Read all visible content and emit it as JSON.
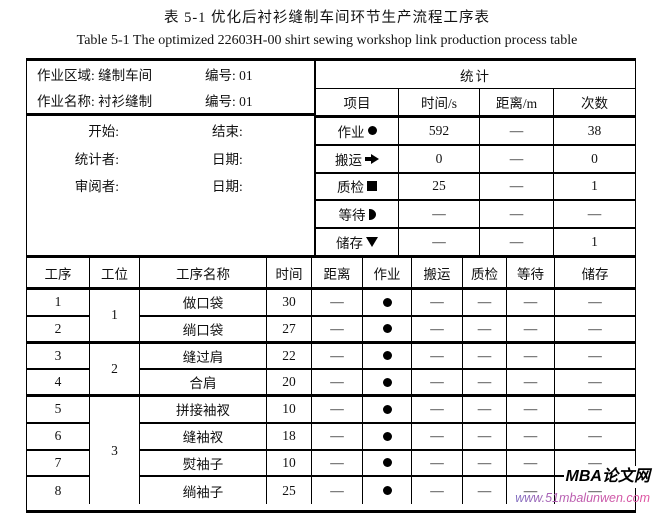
{
  "titles": {
    "cn": "表 5-1 优化后衬衫缝制车间环节生产流程工序表",
    "en": "Table 5-1 The optimized 22603H-00 shirt sewing workshop link production process table"
  },
  "info": {
    "area_label": "作业区域:",
    "area_value": "缝制车间",
    "area_no_label": "编号:",
    "area_no": "01",
    "name_label": "作业名称:",
    "name_value": "衬衫缝制",
    "name_no_label": "编号:",
    "name_no": "01",
    "start_label": "开始:",
    "end_label": "结束:",
    "stat_label": "统计者:",
    "date1_label": "日期:",
    "review_label": "审阅者:",
    "date2_label": "日期:"
  },
  "stats": {
    "title": "统计",
    "headers": [
      "项目",
      "时间/s",
      "距离/m",
      "次数"
    ],
    "rows": [
      {
        "item": "作业",
        "icon": "filled-circle",
        "time": "592",
        "dist": "—",
        "count": "38"
      },
      {
        "item": "搬运",
        "icon": "arrow-right",
        "time": "0",
        "dist": "—",
        "count": "0"
      },
      {
        "item": "质检",
        "icon": "filled-square",
        "time": "25",
        "dist": "—",
        "count": "1"
      },
      {
        "item": "等待",
        "icon": "half-circle-d",
        "time": "—",
        "dist": "—",
        "count": "—"
      },
      {
        "item": "储存",
        "icon": "triangle-down",
        "time": "—",
        "dist": "—",
        "count": "1"
      }
    ]
  },
  "process": {
    "headers": [
      "工序",
      "工位",
      "工序名称",
      "时间",
      "距离",
      "作业",
      "搬运",
      "质检",
      "等待",
      "储存"
    ],
    "stations": [
      {
        "label": "1",
        "span": 2
      },
      {
        "label": "2",
        "span": 2
      },
      {
        "label": "3",
        "span": 4
      }
    ],
    "rows": [
      {
        "no": "1",
        "name": "做口袋",
        "time": "30",
        "dist": "—",
        "op": "●",
        "move": "—",
        "qc": "—",
        "wait": "—",
        "store": "—"
      },
      {
        "no": "2",
        "name": "绱口袋",
        "time": "27",
        "dist": "—",
        "op": "●",
        "move": "—",
        "qc": "—",
        "wait": "—",
        "store": "—"
      },
      {
        "no": "3",
        "name": "缝过肩",
        "time": "22",
        "dist": "—",
        "op": "●",
        "move": "—",
        "qc": "—",
        "wait": "—",
        "store": "—"
      },
      {
        "no": "4",
        "name": "合肩",
        "time": "20",
        "dist": "—",
        "op": "●",
        "move": "—",
        "qc": "—",
        "wait": "—",
        "store": "—"
      },
      {
        "no": "5",
        "name": "拼接袖衩",
        "time": "10",
        "dist": "—",
        "op": "●",
        "move": "—",
        "qc": "—",
        "wait": "—",
        "store": "—"
      },
      {
        "no": "6",
        "name": "缝袖衩",
        "time": "18",
        "dist": "—",
        "op": "●",
        "move": "—",
        "qc": "—",
        "wait": "—",
        "store": "—"
      },
      {
        "no": "7",
        "name": "熨袖子",
        "time": "10",
        "dist": "—",
        "op": "●",
        "move": "—",
        "qc": "—",
        "wait": "—",
        "store": "—"
      },
      {
        "no": "8",
        "name": "绱袖子",
        "time": "25",
        "dist": "—",
        "op": "●",
        "move": "—",
        "qc": "—",
        "wait": "—",
        "store": "—"
      }
    ]
  },
  "watermark": {
    "line1": "MBA论文网",
    "line2": "www.51mbalunwen.com"
  }
}
